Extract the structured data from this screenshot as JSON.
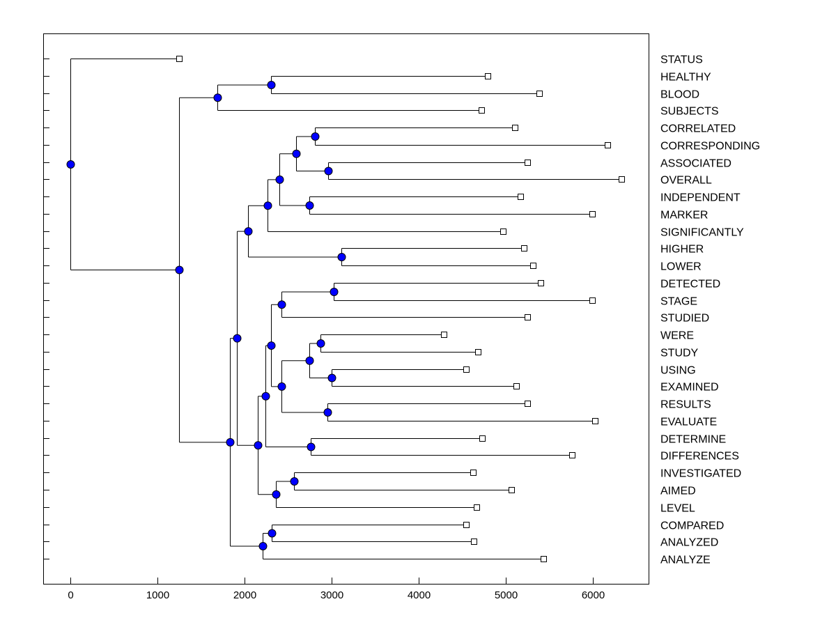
{
  "chart_data": {
    "type": "dendrogram",
    "title": "",
    "xlabel": "",
    "ylabel": "",
    "xlim": [
      -300,
      6650
    ],
    "xticks": [
      0,
      1000,
      2000,
      3000,
      4000,
      5000,
      6000
    ],
    "grid": false,
    "colors": {
      "node": "#0000ff",
      "line": "#000000",
      "leaf": "#ffffff"
    },
    "leaves": [
      "STATUS",
      "HEALTHY",
      "BLOOD",
      "SUBJECTS",
      "CORRELATED",
      "CORRESPONDING",
      "ASSOCIATED",
      "OVERALL",
      "INDEPENDENT",
      "MARKER",
      "SIGNIFICANTLY",
      "HIGHER",
      "LOWER",
      "DETECTED",
      "STAGE",
      "STUDIED",
      "WERE",
      "STUDY",
      "USING",
      "EXAMINED",
      "RESULTS",
      "EVALUATE",
      "DETERMINE",
      "DIFFERENCES",
      "INVESTIGATED",
      "AIMED",
      "LEVEL",
      "COMPARED",
      "ANALYZED",
      "ANALYZE"
    ],
    "tree": {
      "h": 0,
      "children": [
        {
          "leaf": "STATUS",
          "v": 1250
        },
        {
          "h": 1250,
          "children": [
            {
              "h": 1690,
              "children": [
                {
                  "h": 2300,
                  "children": [
                    {
                      "leaf": "HEALTHY",
                      "v": 4790
                    },
                    {
                      "leaf": "BLOOD",
                      "v": 5380
                    }
                  ]
                },
                {
                  "leaf": "SUBJECTS",
                  "v": 4720
                }
              ]
            },
            {
              "h": 1830,
              "children": [
                {
                  "h": 1910,
                  "children": [
                    {
                      "h": 2040,
                      "children": [
                        {
                          "h": 2260,
                          "children": [
                            {
                              "h": 2400,
                              "children": [
                                {
                                  "h": 2590,
                                  "children": [
                                    {
                                      "h": 2810,
                                      "children": [
                                        {
                                          "leaf": "CORRELATED",
                                          "v": 5100
                                        },
                                        {
                                          "leaf": "CORRESPONDING",
                                          "v": 6170
                                        }
                                      ]
                                    },
                                    {
                                      "h": 2960,
                                      "children": [
                                        {
                                          "leaf": "ASSOCIATED",
                                          "v": 5250
                                        },
                                        {
                                          "leaf": "OVERALL",
                                          "v": 6330
                                        }
                                      ]
                                    }
                                  ]
                                },
                                {
                                  "h": 2740,
                                  "children": [
                                    {
                                      "leaf": "INDEPENDENT",
                                      "v": 5170
                                    },
                                    {
                                      "leaf": "MARKER",
                                      "v": 5990
                                    }
                                  ]
                                }
                              ]
                            },
                            {
                              "leaf": "SIGNIFICANTLY",
                              "v": 4970
                            }
                          ]
                        },
                        {
                          "h": 3110,
                          "children": [
                            {
                              "leaf": "HIGHER",
                              "v": 5210
                            },
                            {
                              "leaf": "LOWER",
                              "v": 5310
                            }
                          ]
                        }
                      ]
                    },
                    {
                      "h": 2150,
                      "children": [
                        {
                          "h": 2240,
                          "children": [
                            {
                              "h": 2300,
                              "children": [
                                {
                                  "h": 2420,
                                  "children": [
                                    {
                                      "h": 3020,
                                      "children": [
                                        {
                                          "leaf": "DETECTED",
                                          "v": 5400
                                        },
                                        {
                                          "leaf": "STAGE",
                                          "v": 5990
                                        }
                                      ]
                                    },
                                    {
                                      "leaf": "STUDIED",
                                      "v": 5250
                                    }
                                  ]
                                },
                                {
                                  "h": 2420,
                                  "children": [
                                    {
                                      "h": 2740,
                                      "children": [
                                        {
                                          "h": 2870,
                                          "children": [
                                            {
                                              "leaf": "WERE",
                                              "v": 4290
                                            },
                                            {
                                              "leaf": "STUDY",
                                              "v": 4680
                                            }
                                          ]
                                        },
                                        {
                                          "h": 3000,
                                          "children": [
                                            {
                                              "leaf": "USING",
                                              "v": 4540
                                            },
                                            {
                                              "leaf": "EXAMINED",
                                              "v": 5120
                                            }
                                          ]
                                        }
                                      ]
                                    },
                                    {
                                      "h": 2950,
                                      "children": [
                                        {
                                          "leaf": "RESULTS",
                                          "v": 5250
                                        },
                                        {
                                          "leaf": "EVALUATE",
                                          "v": 6020
                                        }
                                      ]
                                    }
                                  ]
                                }
                              ]
                            },
                            {
                              "h": 2760,
                              "children": [
                                {
                                  "leaf": "DETERMINE",
                                  "v": 4730
                                },
                                {
                                  "leaf": "DIFFERENCES",
                                  "v": 5760
                                }
                              ]
                            }
                          ]
                        },
                        {
                          "h": 2360,
                          "children": [
                            {
                              "h": 2570,
                              "children": [
                                {
                                  "leaf": "INVESTIGATED",
                                  "v": 4620
                                },
                                {
                                  "leaf": "AIMED",
                                  "v": 5060
                                }
                              ]
                            },
                            {
                              "leaf": "LEVEL",
                              "v": 4660
                            }
                          ]
                        }
                      ]
                    }
                  ]
                },
                {
                  "h": 2210,
                  "children": [
                    {
                      "h": 2310,
                      "children": [
                        {
                          "leaf": "COMPARED",
                          "v": 4540
                        },
                        {
                          "leaf": "ANALYZED",
                          "v": 4630
                        }
                      ]
                    },
                    {
                      "leaf": "ANALYZE",
                      "v": 5430
                    }
                  ]
                }
              ]
            }
          ]
        }
      ]
    }
  }
}
